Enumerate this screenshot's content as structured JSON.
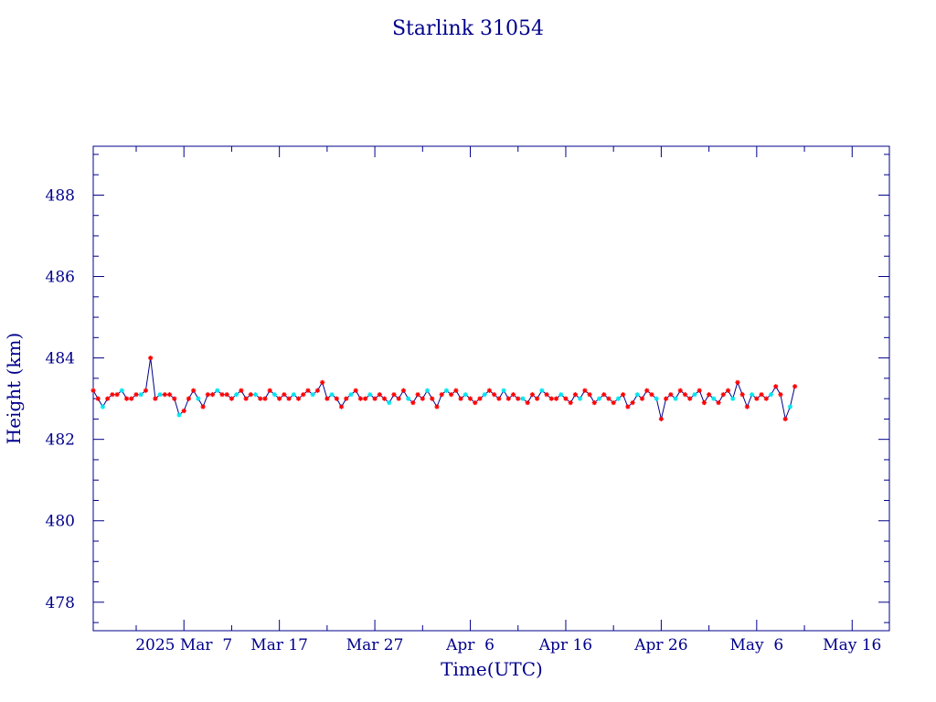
{
  "chart_data": {
    "type": "line",
    "title": "Starlink 31054",
    "xlabel": "Time(UTC)",
    "ylabel": "Height (km)",
    "x_tick_labels": [
      "2025 Mar  7",
      "Mar 17",
      "Mar 27",
      "Apr  6",
      "Apr 16",
      "Apr 26",
      "May  6",
      "May 16"
    ],
    "y_tick_labels": [
      "478",
      "480",
      "482",
      "484",
      "486",
      "488"
    ],
    "y_ticks": [
      478,
      480,
      482,
      484,
      486,
      488
    ],
    "x_tick_days": [
      0,
      10,
      20,
      30,
      40,
      50,
      60,
      70
    ],
    "xlim_days": [
      -9.5,
      73.9
    ],
    "ylim": [
      477.3,
      489.2
    ],
    "grid": false,
    "colors": {
      "axis": "#00008b",
      "line": "#00008b",
      "marker_primary": "#ff0000",
      "marker_secondary": "#00e5ee"
    },
    "series": [
      {
        "x_days": [
          -9.5,
          -9.0,
          -8.5,
          -8.0,
          -7.5,
          -7.0,
          -6.5,
          -6.0,
          -5.5,
          -5.0,
          -4.5,
          -4.0,
          -3.5,
          -3.0,
          -2.5,
          -2.0,
          -1.5,
          -1.0,
          -0.5,
          0.0,
          0.5,
          1.0,
          1.5,
          2.0,
          2.5,
          3.0,
          3.5,
          4.0,
          4.5,
          5.0,
          5.5,
          6.0,
          6.5,
          7.0,
          7.5,
          8.0,
          8.5,
          9.0,
          9.5,
          10.0,
          10.5,
          11.0,
          11.5,
          12.0,
          12.5,
          13.0,
          13.5,
          14.0,
          14.5,
          15.0,
          15.5,
          16.0,
          16.5,
          17.0,
          17.5,
          18.0,
          18.5,
          19.0,
          19.5,
          20.0,
          20.5,
          21.0,
          21.5,
          22.0,
          22.5,
          23.0,
          23.5,
          24.0,
          24.5,
          25.0,
          25.5,
          26.0,
          26.5,
          27.0,
          27.5,
          28.0,
          28.5,
          29.0,
          29.5,
          30.0,
          30.5,
          31.0,
          31.5,
          32.0,
          32.5,
          33.0,
          33.5,
          34.0,
          34.5,
          35.0,
          35.5,
          36.0,
          36.5,
          37.0,
          37.5,
          38.0,
          38.5,
          39.0,
          39.5,
          40.0,
          40.5,
          41.0,
          41.5,
          42.0,
          42.5,
          43.0,
          43.5,
          44.0,
          44.5,
          45.0,
          45.5,
          46.0,
          46.5,
          47.0,
          47.5,
          48.0,
          48.5,
          49.0,
          49.5,
          50.0,
          50.5,
          51.0,
          51.5,
          52.0,
          52.5,
          53.0,
          53.5,
          54.0,
          54.5,
          55.0,
          55.5,
          56.0,
          56.5,
          57.0,
          57.5,
          58.0,
          58.5,
          59.0,
          59.5,
          60.0,
          60.5,
          61.0,
          61.5,
          62.0,
          62.5,
          63.0,
          63.5,
          64.0
        ],
        "y": [
          483.2,
          483.0,
          482.8,
          483.0,
          483.1,
          483.1,
          483.2,
          483.0,
          483.0,
          483.1,
          483.1,
          483.2,
          484.0,
          483.0,
          483.1,
          483.1,
          483.1,
          483.0,
          482.6,
          482.7,
          483.0,
          483.2,
          483.0,
          482.8,
          483.1,
          483.1,
          483.2,
          483.1,
          483.1,
          483.0,
          483.1,
          483.2,
          483.0,
          483.1,
          483.1,
          483.0,
          483.0,
          483.2,
          483.1,
          483.0,
          483.1,
          483.0,
          483.1,
          483.0,
          483.1,
          483.2,
          483.1,
          483.2,
          483.4,
          483.0,
          483.1,
          483.0,
          482.8,
          483.0,
          483.1,
          483.2,
          483.0,
          483.0,
          483.1,
          483.0,
          483.1,
          483.0,
          482.9,
          483.1,
          483.0,
          483.2,
          483.0,
          482.9,
          483.1,
          483.0,
          483.2,
          483.0,
          482.8,
          483.1,
          483.2,
          483.1,
          483.2,
          483.0,
          483.1,
          483.0,
          482.9,
          483.0,
          483.1,
          483.2,
          483.1,
          483.0,
          483.2,
          483.0,
          483.1,
          483.0,
          483.0,
          482.9,
          483.1,
          483.0,
          483.2,
          483.1,
          483.0,
          483.0,
          483.1,
          483.0,
          482.9,
          483.1,
          483.0,
          483.2,
          483.1,
          482.9,
          483.0,
          483.1,
          483.0,
          482.9,
          483.0,
          483.1,
          482.8,
          482.9,
          483.1,
          483.0,
          483.2,
          483.1,
          483.0,
          482.5,
          483.0,
          483.1,
          483.0,
          483.2,
          483.1,
          483.0,
          483.1,
          483.2,
          482.9,
          483.1,
          483.0,
          482.9,
          483.1,
          483.2,
          483.0,
          483.4,
          483.1,
          482.8,
          483.1,
          483.0,
          483.1,
          483.0,
          483.1,
          483.3,
          483.1,
          482.5,
          482.8,
          483.3
        ]
      }
    ]
  }
}
